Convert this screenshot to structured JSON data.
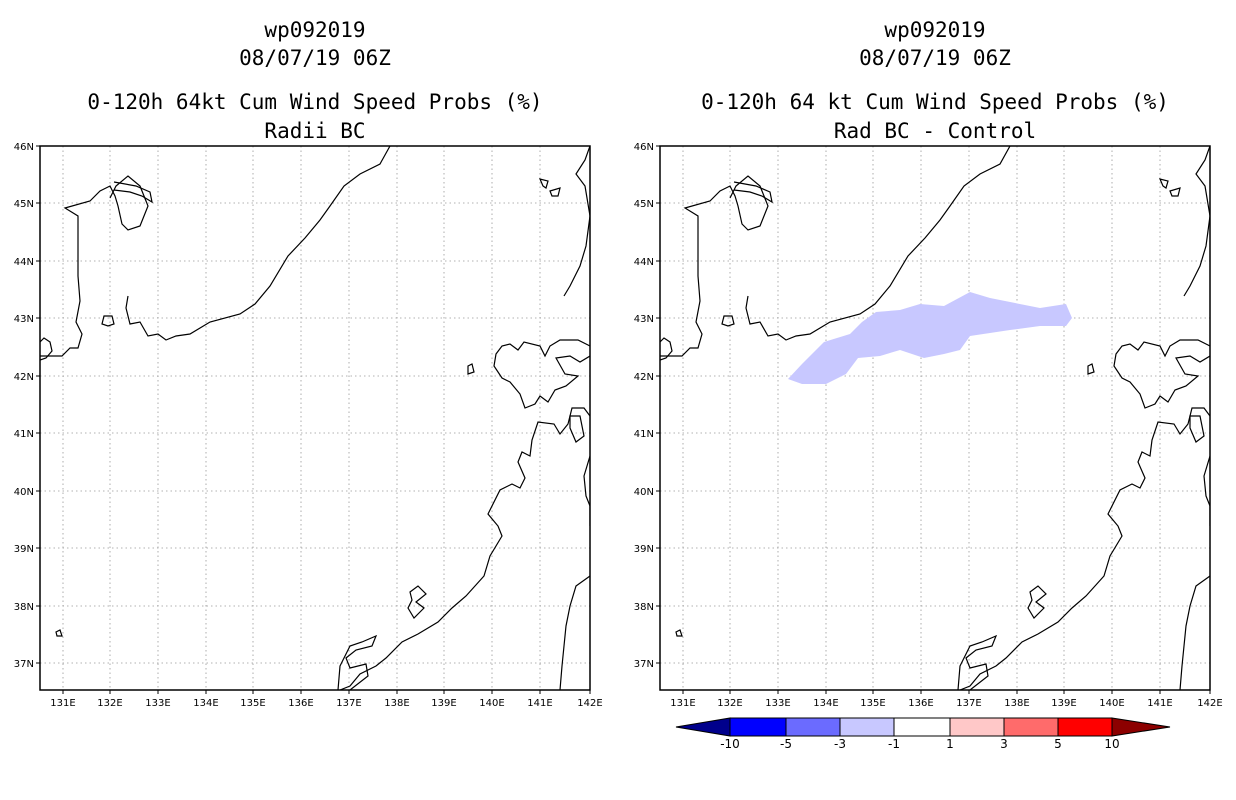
{
  "left_panel": {
    "title_line1": "wp092019",
    "title_line2": "08/07/19 06Z",
    "title_line3": "0-120h 64kt Cum Wind Speed Probs (%)",
    "title_line4": "Radii BC"
  },
  "right_panel": {
    "title_line1": "wp092019",
    "title_line2": "08/07/19 06Z",
    "title_line3": "0-120h 64 kt Cum Wind Speed Probs (%)",
    "title_line4": "Rad BC - Control"
  },
  "axes": {
    "lon_labels": [
      "131E",
      "132E",
      "133E",
      "134E",
      "135E",
      "136E",
      "137E",
      "138E",
      "139E",
      "140E",
      "141E",
      "142E"
    ],
    "lat_labels": [
      "46N",
      "45N",
      "44N",
      "43N",
      "42N",
      "41N",
      "40N",
      "39N",
      "38N",
      "37N"
    ]
  },
  "colorbar": {
    "labels": [
      "-10",
      "-5",
      "-3",
      "-1",
      "1",
      "3",
      "5",
      "10"
    ],
    "colors": [
      "#00008c",
      "#0000ff",
      "#6b6bff",
      "#c8c8ff",
      "#ffffff",
      "#ffc8c8",
      "#ff6b6b",
      "#ff0000",
      "#8c0000"
    ]
  },
  "difference_region": {
    "color": "#c8c8ff",
    "label_class": "-3 to -1"
  }
}
